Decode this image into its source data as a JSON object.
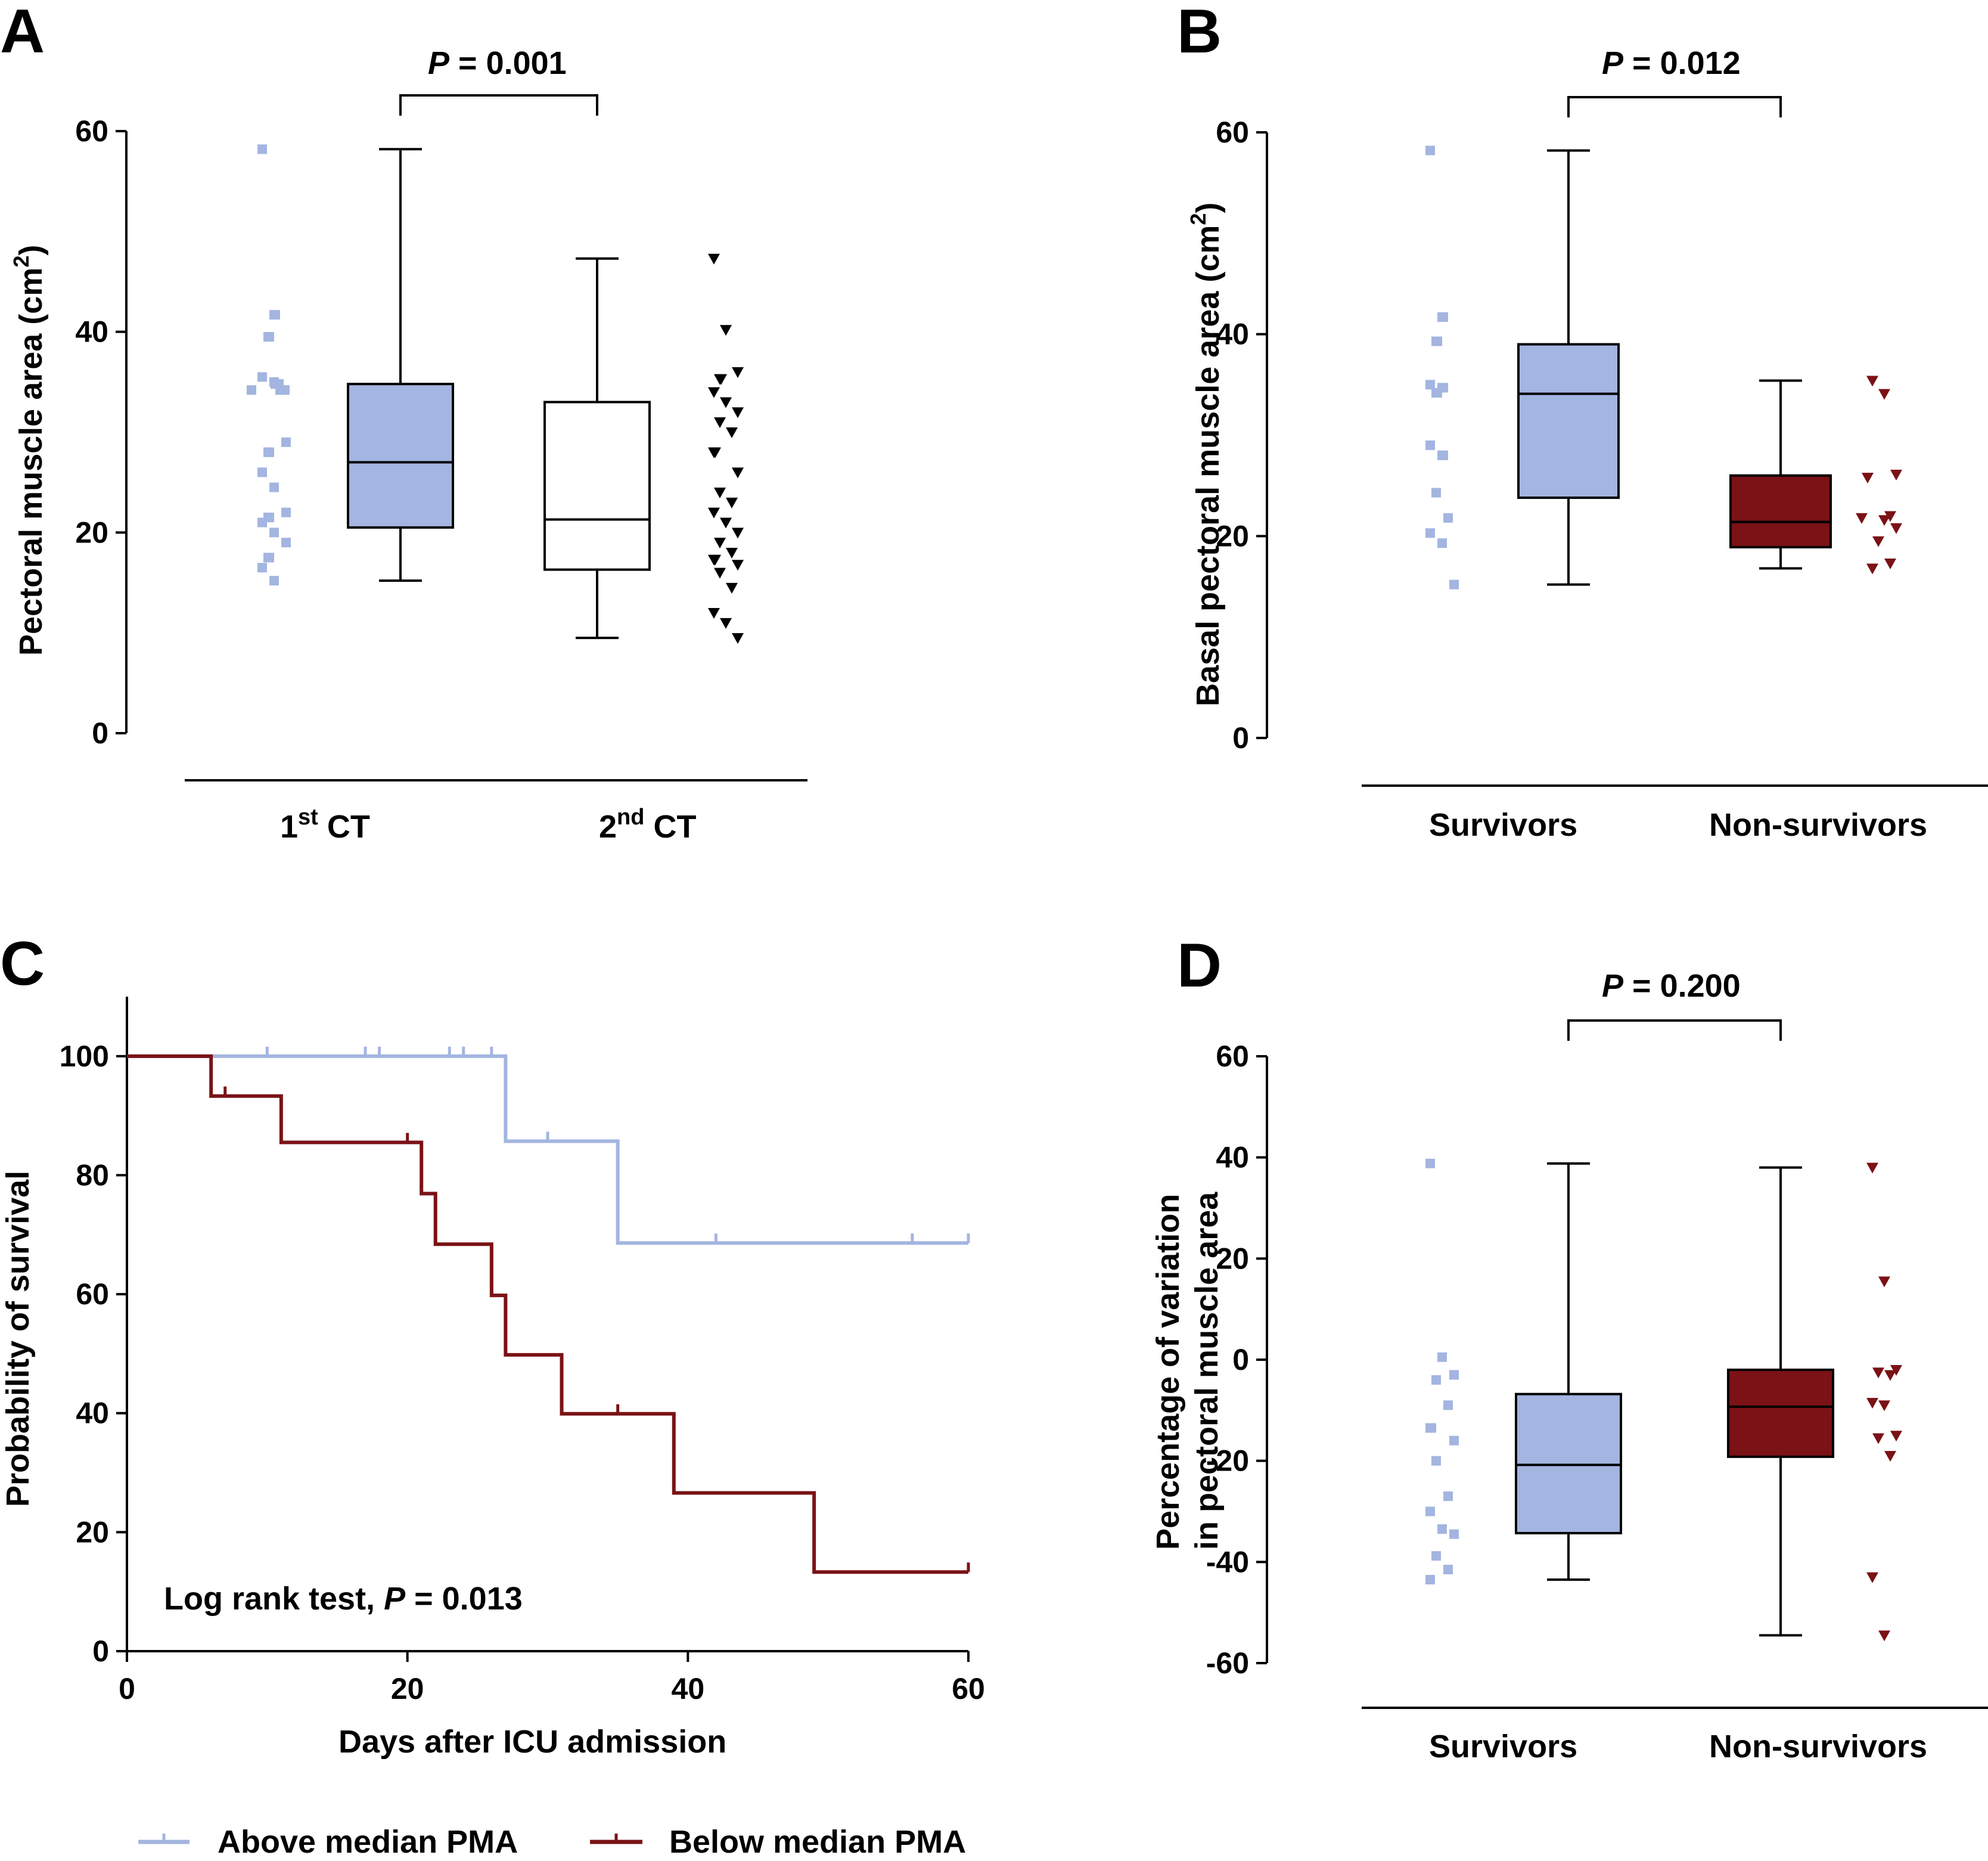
{
  "colors": {
    "blue": "#a3b5e0",
    "red": "#7a1216",
    "black": "#000000",
    "white": "#ffffff"
  },
  "legend": {
    "above": "Above median PMA",
    "below": "Below median PMA"
  },
  "chart_data": [
    {
      "panel": "A",
      "type": "box",
      "ylabel": "Pectoral muscle area (cm²)",
      "ylim": [
        0,
        60
      ],
      "yticks": [
        "0",
        "20",
        "40",
        "60"
      ],
      "p_value_label": "P",
      "p_value_text": " = 0.001",
      "categories": [
        "1st CT",
        "2nd CT"
      ],
      "boxes": [
        {
          "category": "1st CT",
          "color": "blue",
          "min": 15.2,
          "q1": 20.5,
          "median": 27.0,
          "q3": 34.8,
          "max": 58.2
        },
        {
          "category": "2nd CT",
          "color": "white",
          "min": 9.5,
          "q1": 16.3,
          "median": 21.3,
          "q3": 33.0,
          "max": 47.3
        }
      ],
      "scatter": [
        {
          "category": "1st CT",
          "color": "blue",
          "marker": "square",
          "values": [
            58.2,
            41.7,
            41.7,
            39.5,
            39.5,
            35.5,
            35.0,
            34.8,
            34.8,
            34.2,
            34.2,
            34.2,
            29.0,
            28.0,
            28.0,
            26.0,
            24.5,
            22.0,
            21.5,
            21.5,
            21.0,
            20.0,
            19.0,
            17.5,
            17.5,
            16.5,
            15.2
          ]
        },
        {
          "category": "2nd CT",
          "color": "black",
          "marker": "triangle-down",
          "values": [
            47.3,
            40.2,
            36.0,
            35.3,
            35.3,
            34.0,
            33.0,
            32.0,
            31.0,
            30.0,
            28.0,
            28.0,
            26.0,
            24.0,
            23.0,
            22.0,
            21.0,
            20.0,
            19.0,
            18.0,
            17.3,
            17.3,
            16.8,
            16.0,
            14.5,
            12.0,
            11.0,
            9.5
          ]
        }
      ]
    },
    {
      "panel": "B",
      "type": "box",
      "ylabel": "Basal pectoral muscle area (cm²)",
      "ylim": [
        0,
        60
      ],
      "yticks": [
        "0",
        "20",
        "40",
        "60"
      ],
      "p_value_label": "P",
      "p_value_text": " = 0.012",
      "categories": [
        "Survivors",
        "Non-survivors"
      ],
      "boxes": [
        {
          "category": "Survivors",
          "color": "blue",
          "min": 15.2,
          "q1": 23.8,
          "median": 34.1,
          "q3": 39.0,
          "max": 58.2
        },
        {
          "category": "Non-survivors",
          "color": "red",
          "min": 16.8,
          "q1": 18.9,
          "median": 21.4,
          "q3": 26.0,
          "max": 35.4
        }
      ],
      "scatter": [
        {
          "category": "Survivors",
          "color": "blue",
          "marker": "square",
          "values": [
            58.2,
            41.7,
            41.7,
            39.3,
            39.3,
            35.0,
            34.7,
            34.7,
            34.2,
            34.2,
            29.0,
            28.0,
            28.0,
            24.3,
            21.8,
            20.3,
            19.3,
            15.2
          ]
        },
        {
          "category": "Non-survivors",
          "color": "red",
          "marker": "triangle-down",
          "values": [
            35.4,
            34.1,
            26.1,
            25.8,
            22.0,
            21.8,
            21.6,
            20.8,
            19.5,
            17.3,
            16.8
          ]
        }
      ]
    },
    {
      "panel": "C",
      "type": "line",
      "subtype": "kaplan-meier",
      "xlabel": "Days after ICU admission",
      "ylabel": "Probability of survival",
      "xlim": [
        0,
        60
      ],
      "ylim": [
        0,
        110
      ],
      "xticks": [
        "0",
        "20",
        "40",
        "60"
      ],
      "yticks": [
        "0",
        "20",
        "40",
        "60",
        "80",
        "100"
      ],
      "annotation_prefix": "Log rank test, ",
      "annotation_p": "P",
      "annotation_value": " = 0.013",
      "series": [
        {
          "name": "Above median PMA",
          "color": "blue",
          "steps": [
            [
              0,
              100
            ],
            [
              27,
              85.7
            ],
            [
              35,
              68.6
            ],
            [
              60,
              68.6
            ]
          ],
          "censored": [
            [
              10,
              100
            ],
            [
              17,
              100
            ],
            [
              18,
              100
            ],
            [
              23,
              100
            ],
            [
              24,
              100
            ],
            [
              26,
              100
            ],
            [
              30,
              85.7
            ],
            [
              42,
              68.6
            ],
            [
              56,
              68.6
            ],
            [
              60,
              68.6
            ]
          ]
        },
        {
          "name": "Below median PMA",
          "color": "red",
          "steps": [
            [
              0,
              100
            ],
            [
              6,
              93.3
            ],
            [
              11,
              85.5
            ],
            [
              21,
              76.9
            ],
            [
              22,
              68.4
            ],
            [
              26,
              59.8
            ],
            [
              27,
              49.8
            ],
            [
              31,
              39.9
            ],
            [
              39,
              26.6
            ],
            [
              49,
              13.3
            ],
            [
              60,
              13.3
            ]
          ],
          "censored": [
            [
              7,
              93.3
            ],
            [
              20,
              85.5
            ],
            [
              35,
              39.9
            ],
            [
              60,
              13.3
            ]
          ]
        }
      ]
    },
    {
      "panel": "D",
      "type": "box",
      "ylabel": "Percentage of variation in pectoral muscle area",
      "ylabel_lines": [
        "Percentage of variation",
        "in pectoral muscle area"
      ],
      "ylim": [
        -60,
        60
      ],
      "yticks": [
        "-60",
        "-40",
        "-20",
        "0",
        "20",
        "40",
        "60"
      ],
      "p_value_label": "P",
      "p_value_text": " = 0.200",
      "categories": [
        "Survivors",
        "Non-survivors"
      ],
      "boxes": [
        {
          "category": "Survivors",
          "color": "blue",
          "min": -43.5,
          "q1": -34.3,
          "median": -20.8,
          "q3": -6.8,
          "max": 38.8
        },
        {
          "category": "Non-survivors",
          "color": "red",
          "min": -54.5,
          "q1": -19.2,
          "median": -9.3,
          "q3": -2.0,
          "max": 38.0
        }
      ],
      "scatter": [
        {
          "category": "Survivors",
          "color": "blue",
          "marker": "square",
          "values": [
            38.8,
            0.5,
            -3.0,
            -4.0,
            -9.0,
            -13.5,
            -13.5,
            -16.0,
            -20.0,
            -27.0,
            -30.0,
            -33.5,
            -34.5,
            -38.8,
            -41.5,
            -43.5
          ]
        },
        {
          "category": "Non-survivors",
          "color": "red",
          "marker": "triangle-down",
          "values": [
            38.0,
            15.5,
            -2.0,
            -2.5,
            -3.0,
            -8.5,
            -9.0,
            -15.0,
            -15.5,
            -19.0,
            -43.0,
            -54.5
          ]
        }
      ]
    }
  ]
}
